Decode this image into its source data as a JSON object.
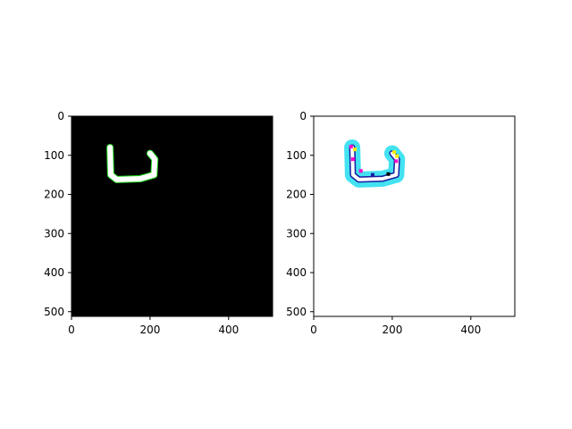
{
  "chart_data": [
    {
      "type": "heatmap",
      "panel": "left",
      "description_of_content": "binary stroke image (white U-shaped mark with green outline) on black background",
      "xlim": [
        0,
        512
      ],
      "ylim": [
        512,
        0
      ],
      "xticks": [
        0,
        200,
        400
      ],
      "yticks": [
        0,
        100,
        200,
        300,
        400,
        500
      ],
      "xtick_labels": [
        "0",
        "200",
        "400"
      ],
      "ytick_labels": [
        "0",
        "100",
        "200",
        "300",
        "400",
        "500"
      ],
      "background_color": "#000000",
      "stroke_color": "#ffffff",
      "outline_color": "#22dd22",
      "stroke_path": [
        [
          98,
          80
        ],
        [
          100,
          150
        ],
        [
          115,
          162
        ],
        [
          175,
          160
        ],
        [
          210,
          150
        ],
        [
          212,
          110
        ],
        [
          200,
          95
        ]
      ]
    },
    {
      "type": "heatmap",
      "panel": "right",
      "description_of_content": "colored prediction map of the U-shaped mark on white background",
      "xlim": [
        0,
        512
      ],
      "ylim": [
        512,
        0
      ],
      "xticks": [
        0,
        200,
        400
      ],
      "yticks": [
        0,
        100,
        200,
        300,
        400,
        500
      ],
      "xtick_labels": [
        "0",
        "200",
        "400"
      ],
      "ytick_labels": [
        "0",
        "100",
        "200",
        "300",
        "400",
        "500"
      ],
      "background_color": "#ffffff",
      "fill_color": "#22ddee",
      "accent_colors": [
        "#1a1aa0",
        "#ff00cc",
        "#ffee00",
        "#000000"
      ],
      "stroke_path": [
        [
          98,
          80
        ],
        [
          100,
          150
        ],
        [
          115,
          162
        ],
        [
          175,
          160
        ],
        [
          210,
          150
        ],
        [
          212,
          110
        ],
        [
          200,
          95
        ]
      ]
    }
  ]
}
